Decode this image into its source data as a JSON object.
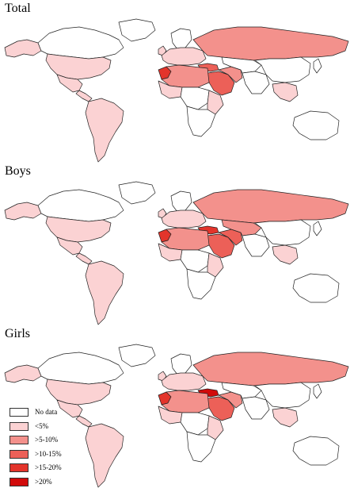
{
  "colors": {
    "no_data": "#ffffff",
    "lt5": "#fbd2d3",
    "5to10": "#f3918c",
    "10to15": "#ec6058",
    "15to20": "#e3342b",
    "gt20": "#d10b0b",
    "border": "#222222"
  },
  "panels": [
    {
      "title": "Total",
      "fills": {
        "usa": "lt5",
        "canada": "no_data",
        "alaska": "lt5",
        "greenland": "no_data",
        "mexico": "lt5",
        "central_america": "lt5",
        "south_america": "lt5",
        "europe": "lt5",
        "russia": "5to10",
        "turkey": "10to15",
        "middle_east": "10to15",
        "iran": "5to10",
        "north_africa": "5to10",
        "morocco": "15to20",
        "west_africa": "lt5",
        "central_africa": "no_data",
        "east_africa": "lt5",
        "south_africa": "no_data",
        "central_asia": "no_data",
        "south_asia": "no_data",
        "china": "no_data",
        "southeast_asia": "lt5",
        "australia": "no_data",
        "japan": "no_data",
        "uk": "lt5",
        "scandinavia": "no_data"
      }
    },
    {
      "title": "Boys",
      "fills": {
        "usa": "lt5",
        "canada": "no_data",
        "alaska": "lt5",
        "greenland": "no_data",
        "mexico": "lt5",
        "central_america": "lt5",
        "south_america": "lt5",
        "europe": "lt5",
        "russia": "5to10",
        "turkey": "15to20",
        "middle_east": "10to15",
        "iran": "10to15",
        "north_africa": "5to10",
        "morocco": "15to20",
        "west_africa": "lt5",
        "central_africa": "no_data",
        "east_africa": "lt5",
        "south_africa": "no_data",
        "central_asia": "5to10",
        "south_asia": "no_data",
        "china": "no_data",
        "southeast_asia": "lt5",
        "australia": "no_data",
        "japan": "no_data",
        "uk": "lt5",
        "scandinavia": "no_data"
      }
    },
    {
      "title": "Girls",
      "fills": {
        "usa": "lt5",
        "canada": "no_data",
        "alaska": "lt5",
        "greenland": "no_data",
        "mexico": "lt5",
        "central_america": "lt5",
        "south_america": "lt5",
        "europe": "lt5",
        "russia": "5to10",
        "turkey": "gt20",
        "middle_east": "10to15",
        "iran": "5to10",
        "north_africa": "5to10",
        "morocco": "15to20",
        "west_africa": "lt5",
        "central_africa": "no_data",
        "east_africa": "lt5",
        "south_africa": "no_data",
        "central_asia": "no_data",
        "south_asia": "no_data",
        "china": "no_data",
        "southeast_asia": "lt5",
        "australia": "no_data",
        "japan": "no_data",
        "uk": "lt5",
        "scandinavia": "no_data"
      }
    }
  ],
  "legend": {
    "items": [
      {
        "label": "No data",
        "color_key": "no_data"
      },
      {
        "label": "<5%",
        "color_key": "lt5"
      },
      {
        "label": ">5-10%",
        "color_key": "5to10"
      },
      {
        "label": ">10-15%",
        "color_key": "10to15"
      },
      {
        "label": ">15-20%",
        "color_key": "15to20"
      },
      {
        "label": ">20%",
        "color_key": "gt20"
      }
    ]
  }
}
